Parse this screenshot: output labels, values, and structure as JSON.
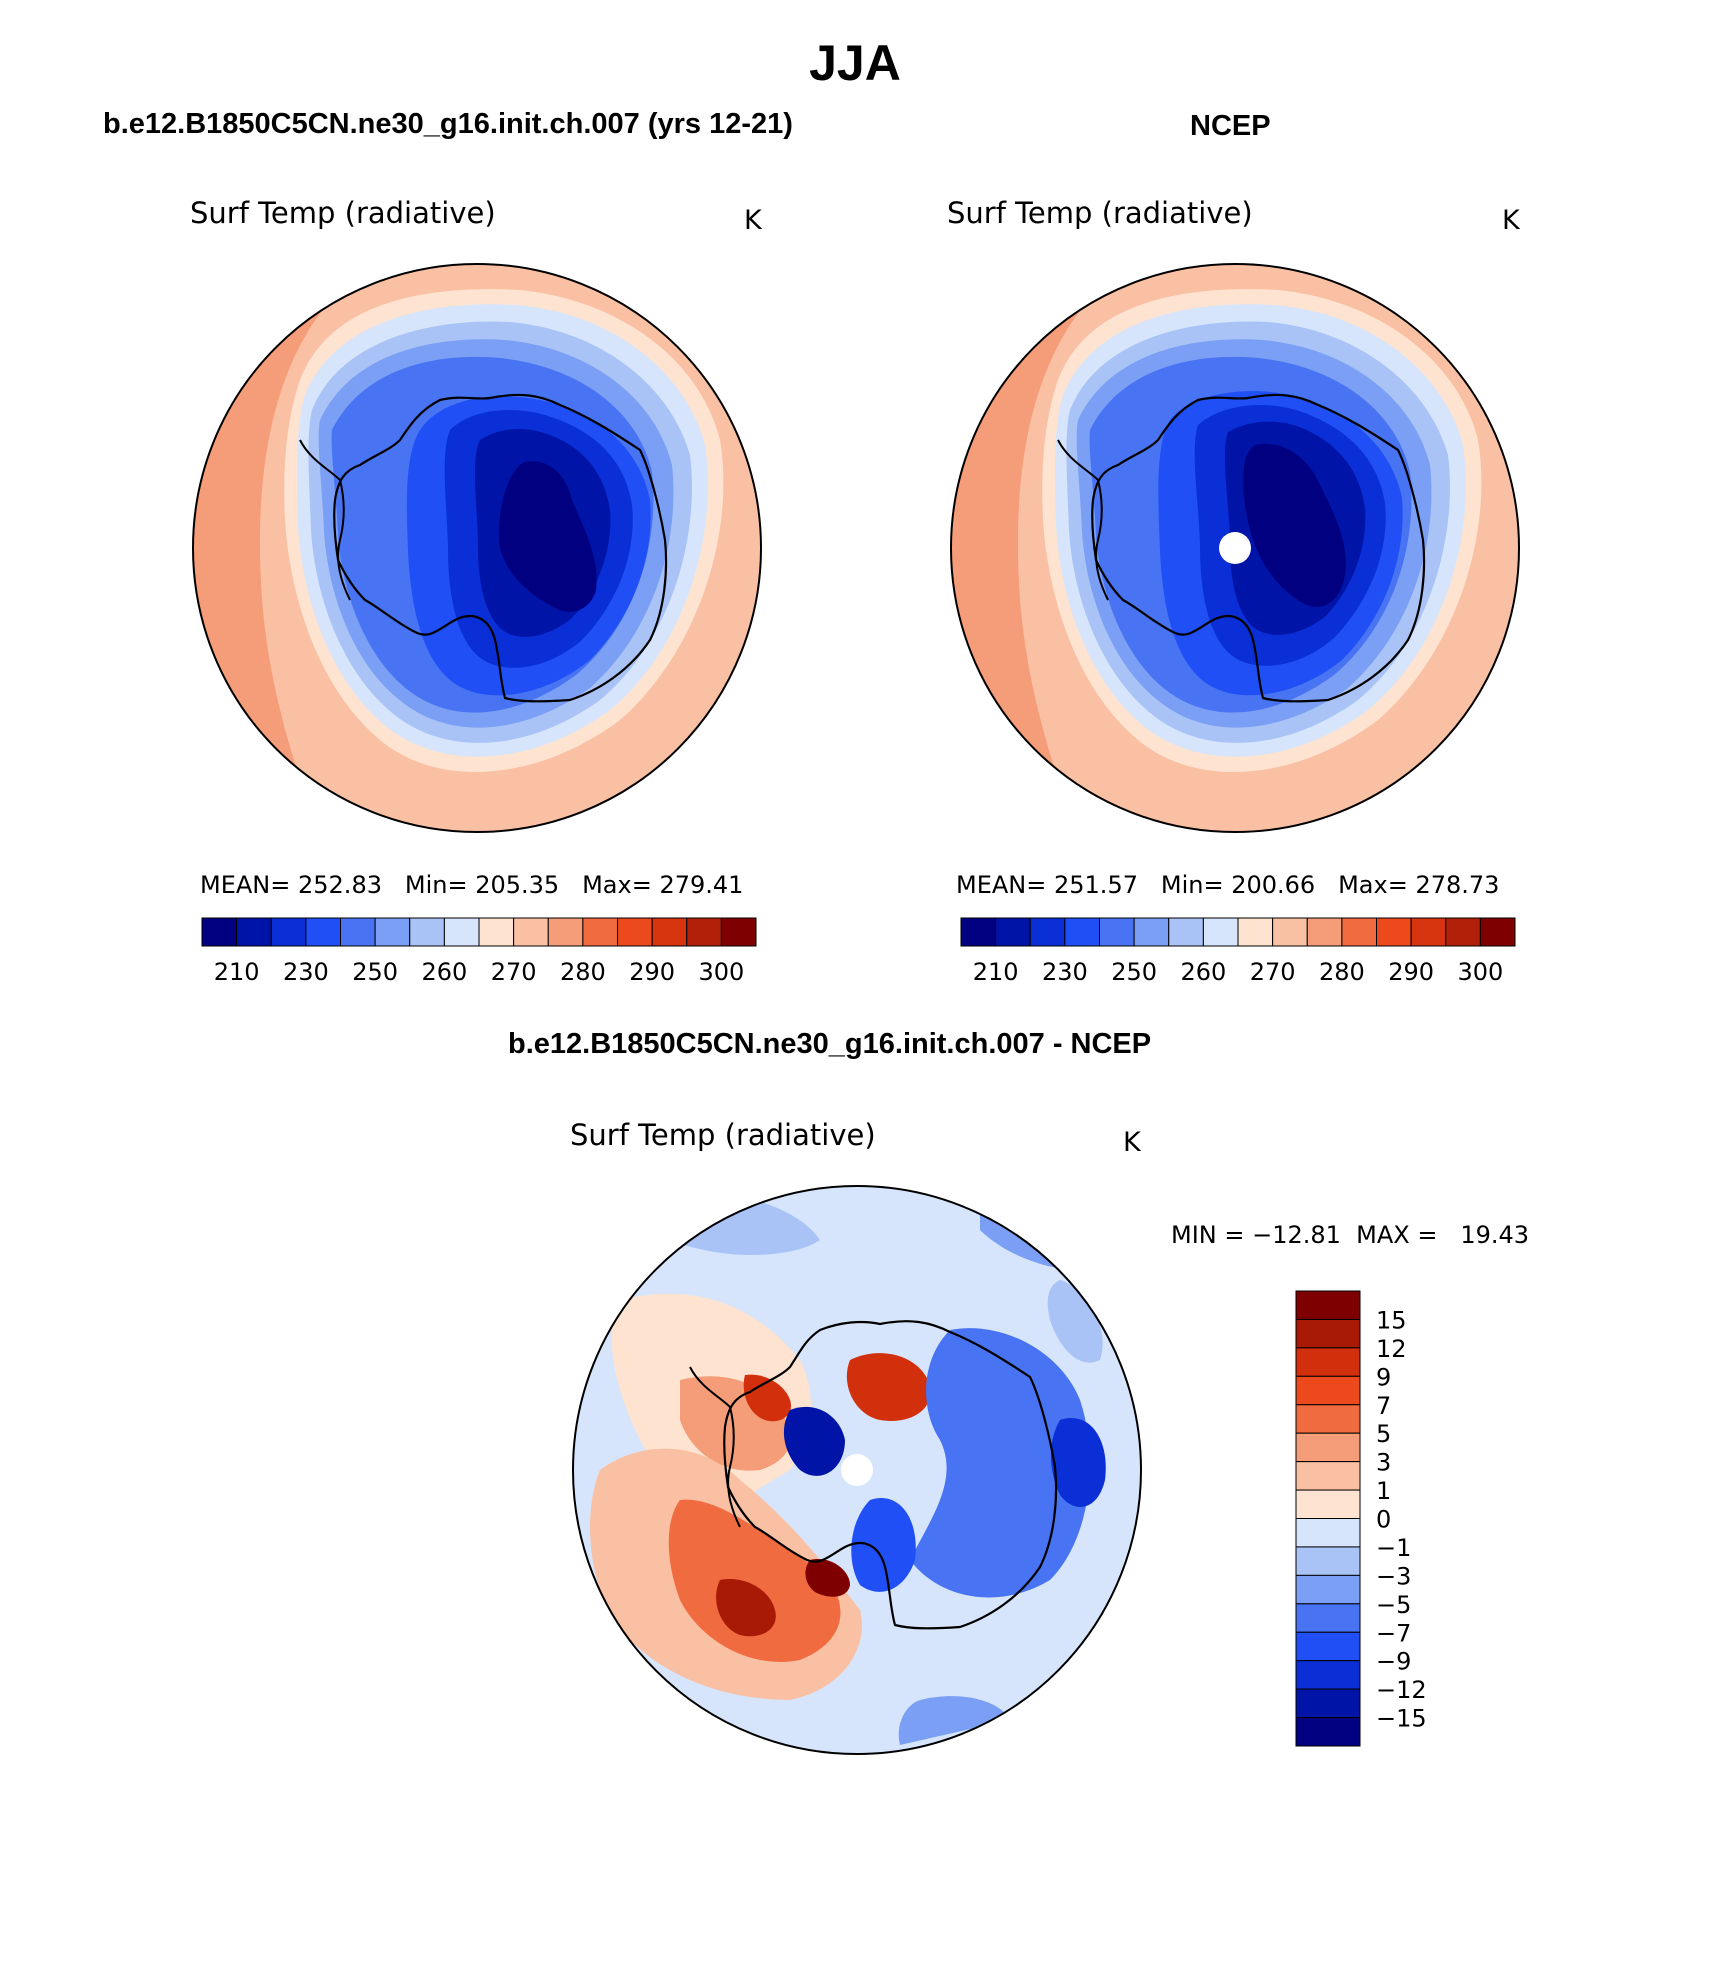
{
  "figure": {
    "title": "JJA",
    "panels": [
      {
        "id": "model",
        "heading": "b.e12.B1850C5CN.ne30_g16.init.ch.007 (yrs 12-21)",
        "variable": "Surf Temp (radiative)",
        "units": "K",
        "stats": {
          "mean_label": "MEAN=",
          "mean": "252.83",
          "min_label": "Min=",
          "min": "205.35",
          "max_label": "Max=",
          "max": "279.41"
        }
      },
      {
        "id": "obs",
        "heading": "NCEP",
        "variable": "Surf Temp (radiative)",
        "units": "K",
        "stats": {
          "mean_label": "MEAN=",
          "mean": "251.57",
          "min_label": "Min=",
          "min": "200.66",
          "max_label": "Max=",
          "max": "278.73"
        }
      }
    ],
    "difference": {
      "heading": "b.e12.B1850C5CN.ne30_g16.init.ch.007 - NCEP",
      "variable": "Surf Temp (radiative)",
      "units": "K",
      "minmax": "MIN = −12.81  MAX =   19.43"
    }
  },
  "abs_colorbar": {
    "labels": [
      "210",
      "230",
      "250",
      "260",
      "270",
      "280",
      "290",
      "300"
    ],
    "colors": [
      "#000080",
      "#0015a8",
      "#0a2fd6",
      "#1f4ff5",
      "#4873f2",
      "#7a9ff5",
      "#a9c3f7",
      "#d6e5fb",
      "#fde3d0",
      "#f9c0a4",
      "#f59c78",
      "#f06b40",
      "#ec4a1c",
      "#d6350f",
      "#b2200a",
      "#7e0000"
    ]
  },
  "diff_colorbar": {
    "labels": [
      "15",
      "12",
      "9",
      "7",
      "5",
      "3",
      "1",
      "0",
      "−1",
      "−3",
      "−5",
      "−7",
      "−9",
      "−12",
      "−15"
    ],
    "colors": [
      "#7e0000",
      "#a81a06",
      "#d2300d",
      "#ec4a1c",
      "#f06b40",
      "#f59c78",
      "#f9c0a4",
      "#fde3d0",
      "#d6e5fb",
      "#a9c3f7",
      "#7a9ff5",
      "#4873f2",
      "#1f4ff5",
      "#0a2fd6",
      "#0015a8",
      "#000080"
    ]
  },
  "map_colors": {
    "ocean_far": "#f59c78",
    "ocean_warm": "#f9c0a4",
    "ocean_mid": "#fde3d0",
    "coast_cool": "#d6e5fb",
    "ice_1": "#a9c3f7",
    "ice_2": "#7a9ff5",
    "ice_3": "#4873f2",
    "ice_4": "#1f4ff5",
    "ice_5": "#0a2fd6",
    "ice_6": "#0015a8",
    "ice_7": "#000080"
  }
}
